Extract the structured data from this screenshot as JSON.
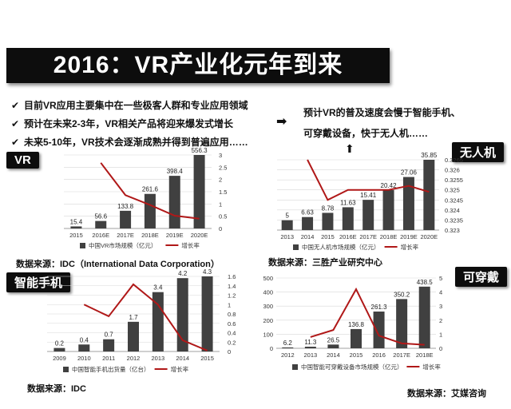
{
  "title": "2016：VR产业化元年到来",
  "bullets": [
    "目前VR应用主要集中在一些极客人群和专业应用领域",
    "预计在未来2-3年，VR相关产品将迎来爆发式增长",
    "未来5-10年，VR技术会逐渐成熟并得到普遍应用……"
  ],
  "check_symbol": "✔",
  "arrow_right": "➡",
  "arrow_up": "⬆",
  "prediction": [
    "预计VR的普及速度会慢于智能手机、",
    "可穿戴设备，快于无人机……"
  ],
  "tags": {
    "vr": "VR",
    "drone": "无人机",
    "phone": "智能手机",
    "wearable": "可穿戴"
  },
  "sources": {
    "vr": "数据来源：IDC（International Data Corporation）",
    "drone": "数据来源：三胜产业研究中心",
    "phone": "数据来源：IDC",
    "wearable": "数据来源：艾媒咨询"
  },
  "colors": {
    "bar": "#404040",
    "line": "#b01818",
    "grid": "#d8d8d8"
  },
  "chart_data": [
    {
      "type": "bar",
      "categories": [
        "2015",
        "2016E",
        "2017E",
        "2018E",
        "2019E",
        "2020E"
      ],
      "series": [
        {
          "name": "中国VR市场规模（亿元）",
          "type": "bar",
          "values": [
            15.4,
            56.6,
            133.8,
            261.6,
            398.4,
            556.3
          ]
        },
        {
          "name": "增长率",
          "type": "line",
          "axis": "right",
          "values": [
            null,
            2.68,
            1.36,
            0.96,
            0.52,
            0.4
          ]
        }
      ],
      "ylim": [
        0,
        556.3
      ],
      "y2lim": [
        0,
        3
      ],
      "y2ticks": [
        "0",
        "0.5",
        "1",
        "1.5",
        "2",
        "2.5",
        "3"
      ]
    },
    {
      "type": "bar",
      "categories": [
        "2013",
        "2014",
        "2015",
        "2016E",
        "2017E",
        "2018E",
        "2019E",
        "2020E"
      ],
      "series": [
        {
          "name": "中国无人机市场规模（亿元）",
          "type": "bar",
          "values": [
            5,
            6.63,
            8.78,
            11.63,
            15.41,
            20.42,
            27.06,
            35.85
          ]
        },
        {
          "name": "增长率",
          "type": "line",
          "axis": "right",
          "values": [
            null,
            0.3265,
            0.3245,
            0.325,
            0.325,
            0.325,
            0.3252,
            0.3249
          ]
        }
      ],
      "ylim": [
        0,
        35.85
      ],
      "y2lim": [
        0.323,
        0.3265
      ],
      "y2ticks": [
        "0.323",
        "0.3235",
        "0.324",
        "0.3245",
        "0.325",
        "0.3255",
        "0.326",
        "0.3265"
      ]
    },
    {
      "type": "bar",
      "categories": [
        "2009",
        "2010",
        "2011",
        "2012",
        "2013",
        "2014",
        "2015"
      ],
      "series": [
        {
          "name": "中国智能手机出货量（亿台）",
          "type": "bar",
          "values": [
            0.2,
            0.4,
            0.7,
            1.7,
            3.4,
            4.2,
            4.3
          ]
        },
        {
          "name": "增长率",
          "type": "line",
          "axis": "right",
          "values": [
            null,
            1.0,
            0.75,
            1.43,
            1.0,
            0.24,
            0.02
          ]
        }
      ],
      "ylim": [
        0,
        4.3
      ],
      "y2lim": [
        0,
        1.6
      ],
      "y2ticks": [
        "0",
        "0.2",
        "0.4",
        "0.6",
        "0.8",
        "1",
        "1.2",
        "1.4",
        "1.6"
      ]
    },
    {
      "type": "bar",
      "categories": [
        "2012",
        "2013",
        "2014",
        "2015",
        "2016",
        "2017E",
        "2018E"
      ],
      "series": [
        {
          "name": "中国智能可穿戴设备市场规模（亿元）",
          "type": "bar",
          "values": [
            6.2,
            11.3,
            26.5,
            136.8,
            261.3,
            350.2,
            438.5
          ]
        },
        {
          "name": "增长率",
          "type": "line",
          "axis": "right",
          "values": [
            null,
            0.8,
            1.3,
            4.2,
            0.9,
            0.35,
            0.25
          ]
        }
      ],
      "ylim": [
        0,
        500
      ],
      "y2lim": [
        0,
        5
      ],
      "yticks": [
        "0",
        "100",
        "200",
        "300",
        "400",
        "500"
      ],
      "y2ticks": [
        "0",
        "1",
        "2",
        "3",
        "4",
        "5"
      ]
    }
  ]
}
